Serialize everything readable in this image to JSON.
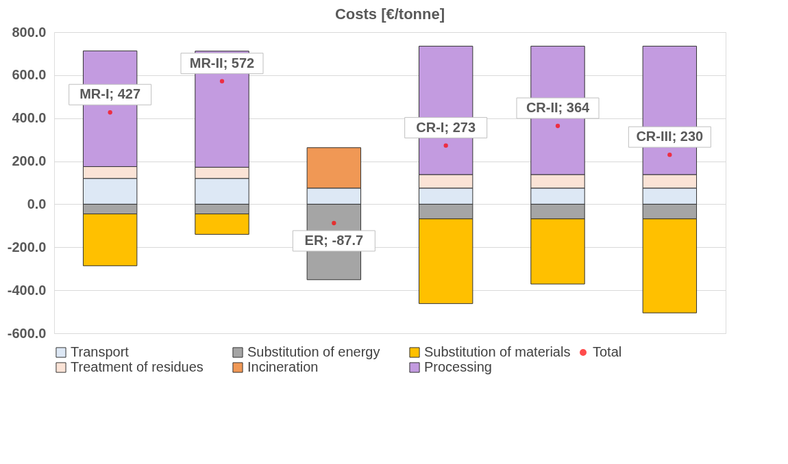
{
  "chart_data": {
    "type": "bar",
    "title": "Costs [€/tonne]",
    "stacked": true,
    "categories": [
      null,
      null,
      null,
      null,
      null,
      null
    ],
    "series": [
      {
        "name": "Transport",
        "color": "#dde8f5",
        "values": [
          120,
          120,
          75,
          75,
          75,
          75
        ]
      },
      {
        "name": "Substitution of energy",
        "color": "#a5a5a5",
        "values": [
          -45,
          -45,
          -351,
          -68,
          -68,
          -68
        ]
      },
      {
        "name": "Substitution of materials",
        "color": "#ffc000",
        "values": [
          -241,
          -95,
          null,
          -394,
          -303,
          -437
        ]
      },
      {
        "name": "Treatment of residues",
        "color": "#fbe3d6",
        "values": [
          55,
          52,
          null,
          63,
          63,
          63
        ]
      },
      {
        "name": "Incineration",
        "color": "#f09855",
        "values": [
          null,
          null,
          188,
          null,
          null,
          null
        ]
      },
      {
        "name": "Processing",
        "color": "#c39be0",
        "values": [
          538,
          540,
          null,
          597,
          597,
          597
        ]
      },
      {
        "name": "Total",
        "type": "scatter",
        "color": "#ff0000",
        "values": [
          427,
          572,
          -87.7,
          273,
          364,
          230
        ],
        "value_labels": [
          "MR-I; 427",
          "MR-II; 572",
          "ER; -87.7",
          "CR-I; 273",
          "CR-II; 364",
          "CR-III; 230"
        ]
      }
    ],
    "ylim": [
      -600,
      800
    ],
    "yticks": [
      {
        "value": -600,
        "label": "-600.0"
      },
      {
        "value": -400,
        "label": "-400.0"
      },
      {
        "value": -200,
        "label": "-200.0"
      },
      {
        "value": 0,
        "label": "0.0"
      },
      {
        "value": 200,
        "label": "200.0"
      },
      {
        "value": 400,
        "label": "400.0"
      },
      {
        "value": 600,
        "label": "600.0"
      },
      {
        "value": 800,
        "label": "800.0"
      }
    ],
    "grid": "y",
    "legend": "bottom",
    "tick_labels": "y",
    "marker": "circle"
  }
}
